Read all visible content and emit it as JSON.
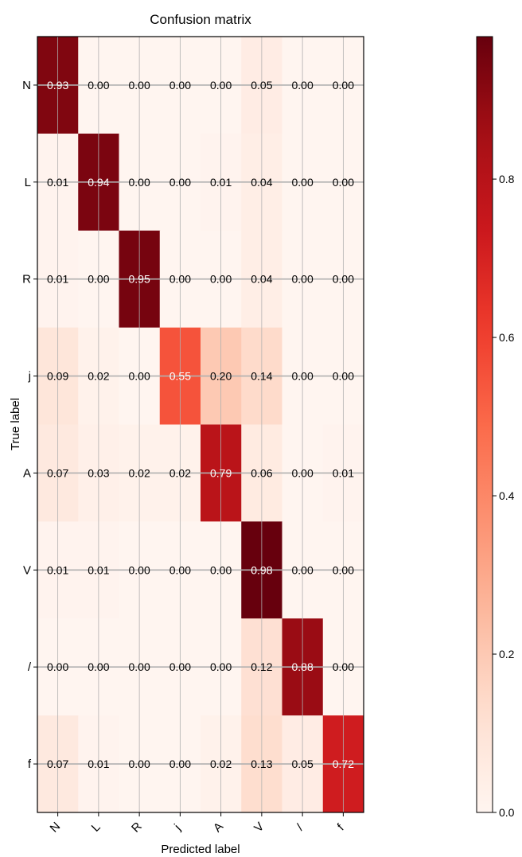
{
  "chart_data": {
    "type": "heatmap",
    "title": "Confusion matrix",
    "xlabel": "Predicted label",
    "ylabel": "True label",
    "x_categories": [
      "N",
      "L",
      "R",
      "j",
      "A",
      "V",
      "/",
      "f"
    ],
    "y_categories": [
      "N",
      "L",
      "R",
      "j",
      "A",
      "V",
      "/",
      "f"
    ],
    "values": [
      [
        0.93,
        0.0,
        0.0,
        0.0,
        0.0,
        0.05,
        0.0,
        0.0
      ],
      [
        0.01,
        0.94,
        0.0,
        0.0,
        0.01,
        0.04,
        0.0,
        0.0
      ],
      [
        0.01,
        0.0,
        0.95,
        0.0,
        0.0,
        0.04,
        0.0,
        0.0
      ],
      [
        0.09,
        0.02,
        0.0,
        0.55,
        0.2,
        0.14,
        0.0,
        0.0
      ],
      [
        0.07,
        0.03,
        0.02,
        0.02,
        0.79,
        0.06,
        0.0,
        0.01
      ],
      [
        0.01,
        0.01,
        0.0,
        0.0,
        0.0,
        0.98,
        0.0,
        0.0
      ],
      [
        0.0,
        0.0,
        0.0,
        0.0,
        0.0,
        0.12,
        0.88,
        0.0
      ],
      [
        0.07,
        0.01,
        0.0,
        0.0,
        0.02,
        0.13,
        0.05,
        0.72
      ]
    ],
    "value_format": "0.00",
    "colormap": "Reds",
    "colorbar": {
      "range": [
        0,
        0.98
      ],
      "ticks": [
        0.0,
        0.2,
        0.4,
        0.6,
        0.8
      ],
      "tick_labels": [
        "0.0",
        "0.2",
        "0.4",
        "0.6",
        "0.8"
      ]
    },
    "grid": true,
    "x_tick_rotation": "45"
  }
}
